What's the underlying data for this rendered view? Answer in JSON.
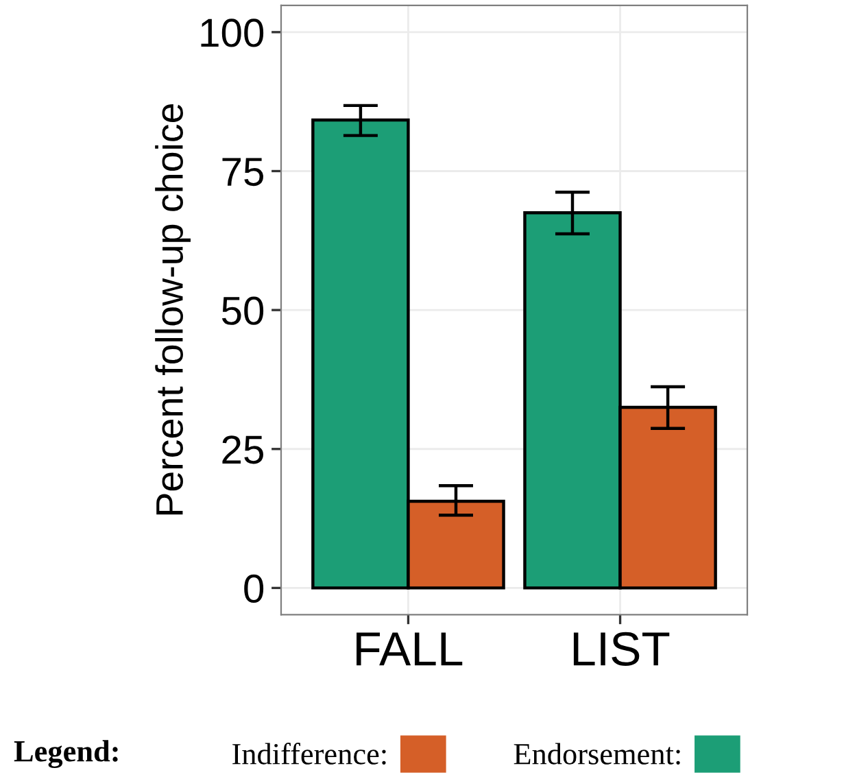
{
  "chart_data": {
    "type": "bar",
    "ylabel": "Percent follow-up choice",
    "categories": [
      "FALL",
      "LIST"
    ],
    "series": [
      {
        "name": "Endorsement:",
        "color": "#1c9e76",
        "values": [
          84.2,
          67.5
        ],
        "errors": [
          [
            81.4,
            86.8
          ],
          [
            63.7,
            71.2
          ]
        ]
      },
      {
        "name": "Indifference:",
        "color": "#d55f28",
        "values": [
          15.6,
          32.5
        ],
        "errors": [
          [
            13.1,
            18.4
          ],
          [
            28.7,
            36.2
          ]
        ]
      }
    ],
    "ylim": [
      -4.8,
      104.8
    ],
    "yticks": [
      0,
      25,
      50,
      75,
      100
    ],
    "grid": true,
    "legend": "bottom",
    "legend_title": "Legend:"
  }
}
